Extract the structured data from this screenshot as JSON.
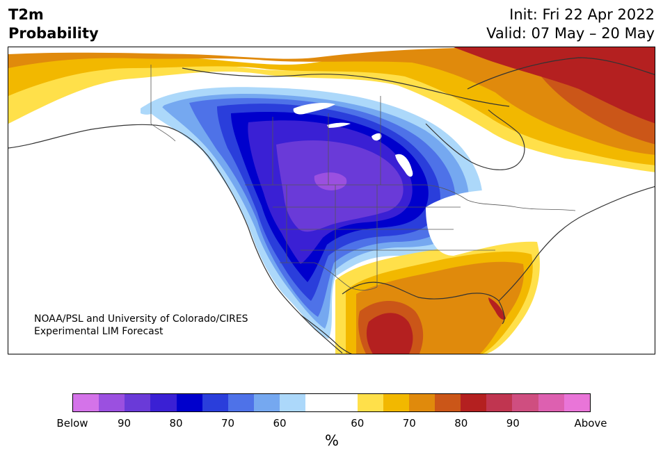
{
  "title": {
    "line1": "T2m",
    "line2": "Probability"
  },
  "dates": {
    "init": "Init: Fri 22 Apr 2022",
    "valid": "Valid: 07 May – 20 May"
  },
  "credit": {
    "line1": "NOAA/PSL and University of Colorado/CIRES",
    "line2": "Experimental LIM Forecast"
  },
  "colors": {
    "below": [
      "#d473e9",
      "#9b50e0",
      "#6a3ad8",
      "#3a20d4",
      "#0000cc",
      "#2a3edb",
      "#4e72e8",
      "#75a8f0",
      "#acd8fa"
    ],
    "neutral": "#ffffff",
    "above": [
      "#ffe04a",
      "#f2b800",
      "#e08a0c",
      "#cb5618",
      "#b42020",
      "#c03550",
      "#cf4e80",
      "#dd60b0",
      "#e975d8"
    ],
    "coastline": "#333333"
  },
  "colorbar": {
    "labels": [
      "Below",
      "90",
      "80",
      "70",
      "60",
      "60",
      "70",
      "80",
      "90",
      "Above"
    ],
    "units": "%"
  }
}
